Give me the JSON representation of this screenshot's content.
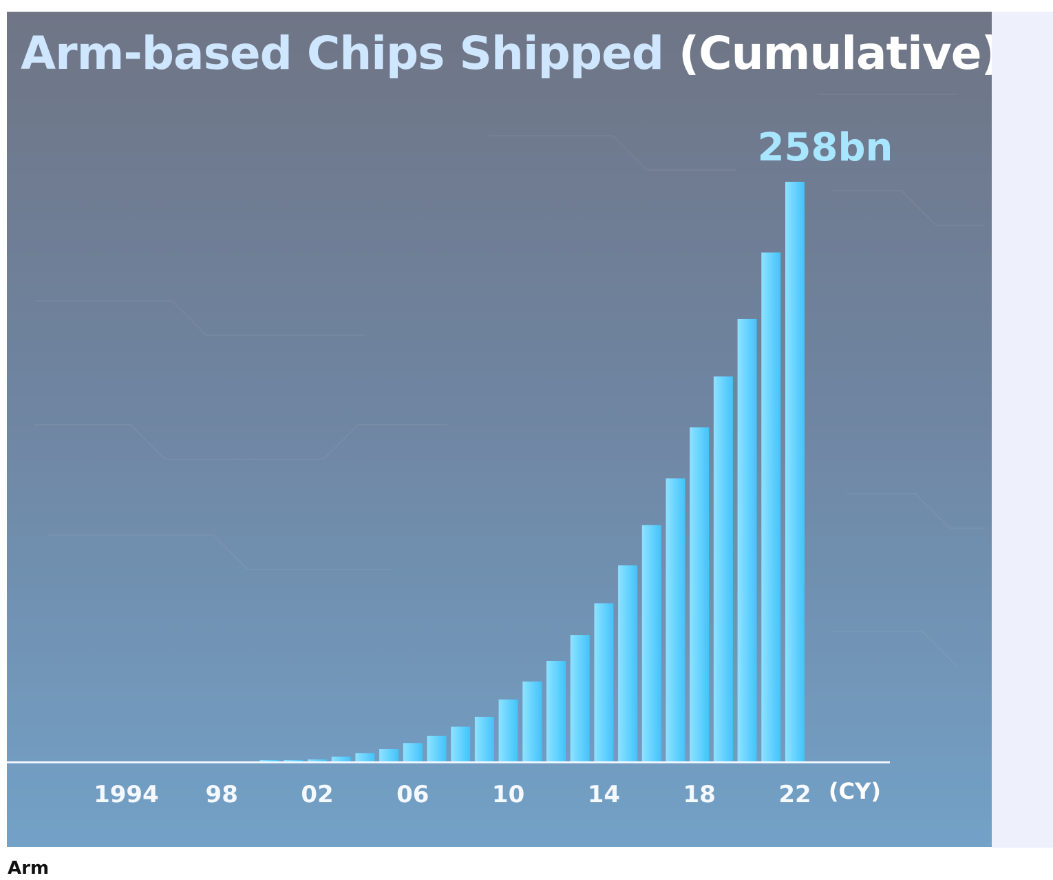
{
  "title_main": "Arm-based Chips Shipped",
  "title_sub": "(Cumulative)",
  "caption": "Arm",
  "chart_data": {
    "type": "bar",
    "title": "Arm-based Chips Shipped (Cumulative)",
    "unit_label": "(CY)",
    "annotation": "258bn",
    "annotation_year": 2022,
    "categories": [
      1991,
      1992,
      1993,
      1994,
      1995,
      1996,
      1997,
      1998,
      1999,
      2000,
      2001,
      2002,
      2003,
      2004,
      2005,
      2006,
      2007,
      2008,
      2009,
      2010,
      2011,
      2012,
      2013,
      2014,
      2015,
      2016,
      2017,
      2018,
      2019,
      2020,
      2021,
      2022
    ],
    "tick_labels": [
      {
        "year": 1994,
        "label": "1994"
      },
      {
        "year": 1998,
        "label": "98"
      },
      {
        "year": 2002,
        "label": "02"
      },
      {
        "year": 2006,
        "label": "06"
      },
      {
        "year": 2010,
        "label": "10"
      },
      {
        "year": 2014,
        "label": "14"
      },
      {
        "year": 2018,
        "label": "18"
      },
      {
        "year": 2022,
        "label": "22"
      }
    ],
    "values": [
      0,
      0,
      0,
      0,
      0,
      0,
      0,
      0,
      0,
      0.3,
      0.8,
      1.3,
      2.5,
      4.0,
      5.8,
      8.5,
      11.7,
      15.8,
      20.2,
      27.9,
      35.9,
      45.0,
      56.6,
      70.6,
      87.5,
      105.4,
      126.2,
      148.9,
      171.5,
      197.1,
      226.6,
      258.0
    ],
    "ylim": [
      0,
      258
    ],
    "bar_color": "#5fd0ff",
    "annotation_color": "#a8e6ff",
    "grid": false
  }
}
